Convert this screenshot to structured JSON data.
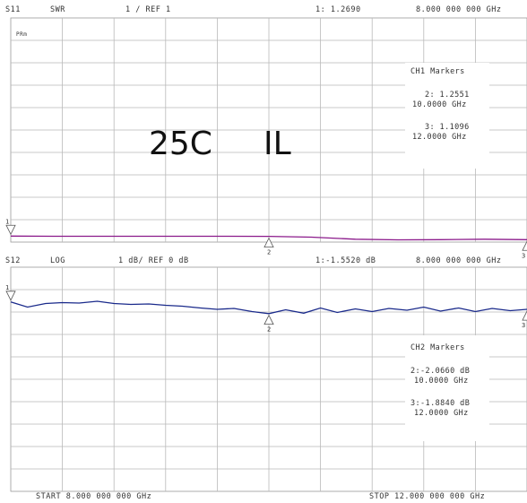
{
  "ch1": {
    "param": "S11",
    "format": "SWR",
    "scale_text": "1  / REF 1",
    "marker_readout": "1: 1.2690",
    "freq_readout": "8.000 000 000 GHz",
    "small_tag": "PRm",
    "markers_title": "CH1 Markers",
    "marker2_value": "2: 1.2551",
    "marker2_freq": "10.0000 GHz",
    "marker3_value": "3: 1.1096",
    "marker3_freq": "12.0000 GHz",
    "trace_color": "#8b1a8b"
  },
  "ch2": {
    "param": "S12",
    "format": "LOG",
    "scale_text": "1  dB/ REF  0  dB",
    "marker_readout": "1:-1.5520 dB",
    "freq_readout": "8.000 000 000 GHz",
    "markers_title": "CH2 Markers",
    "marker2_value": "2:-2.0660 dB",
    "marker2_freq": "10.0000 GHz",
    "marker3_value": "3:-1.8840 dB",
    "marker3_freq": "12.0000 GHz",
    "trace_color": "#1a2a8b"
  },
  "annotation": {
    "temp": "25C",
    "label": "IL"
  },
  "footer": {
    "start": "START  8.000 000 000 GHz",
    "stop": "STOP 12.000 000 000 GHz"
  },
  "chart_data": [
    {
      "type": "line",
      "title": "S11 SWR",
      "x_unit": "GHz",
      "xlim": [
        8,
        12
      ],
      "ylim": [
        1,
        11
      ],
      "reference": 1,
      "scale_per_div": 1,
      "grid": true,
      "series": [
        {
          "x": [
            8.0,
            8.33,
            8.67,
            9.0,
            9.33,
            9.67,
            10.0,
            10.33,
            10.67,
            11.0,
            11.33,
            11.67,
            12.0
          ],
          "y": [
            1.269,
            1.26,
            1.26,
            1.26,
            1.26,
            1.26,
            1.255,
            1.22,
            1.13,
            1.1,
            1.11,
            1.13,
            1.11
          ]
        }
      ],
      "markers": [
        {
          "id": "1",
          "x": 8.0,
          "y": 1.269
        },
        {
          "id": "2",
          "x": 10.0,
          "y": 1.2551
        },
        {
          "id": "3",
          "x": 12.0,
          "y": 1.1096
        }
      ]
    },
    {
      "type": "line",
      "title": "S12 LOG",
      "x_unit": "GHz",
      "y_unit": "dB",
      "xlim": [
        8,
        12
      ],
      "ylim": [
        -10,
        0
      ],
      "reference": 0,
      "scale_per_div": 1,
      "grid": true,
      "series": [
        {
          "x": [
            8.0,
            8.13,
            8.27,
            8.4,
            8.53,
            8.67,
            8.8,
            8.93,
            9.07,
            9.2,
            9.33,
            9.47,
            9.6,
            9.73,
            9.87,
            10.0,
            10.13,
            10.27,
            10.4,
            10.53,
            10.67,
            10.8,
            10.93,
            11.07,
            11.2,
            11.33,
            11.47,
            11.6,
            11.73,
            11.87,
            12.0
          ],
          "y": [
            -1.55,
            -1.78,
            -1.62,
            -1.58,
            -1.6,
            -1.52,
            -1.62,
            -1.66,
            -1.64,
            -1.7,
            -1.74,
            -1.82,
            -1.88,
            -1.84,
            -1.98,
            -2.07,
            -1.9,
            -2.05,
            -1.82,
            -2.02,
            -1.86,
            -1.98,
            -1.84,
            -1.92,
            -1.78,
            -1.96,
            -1.82,
            -1.98,
            -1.84,
            -1.94,
            -1.88
          ]
        }
      ],
      "markers": [
        {
          "id": "1",
          "x": 8.0,
          "y": -1.552
        },
        {
          "id": "2",
          "x": 10.0,
          "y": -2.066
        },
        {
          "id": "3",
          "x": 12.0,
          "y": -1.884
        }
      ]
    }
  ]
}
